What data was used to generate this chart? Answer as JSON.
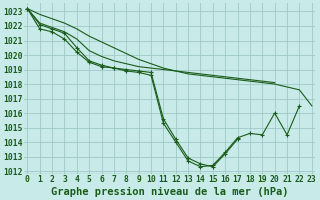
{
  "title": "Graphe pression niveau de la mer (hPa)",
  "bg_color": "#c8eae8",
  "grid_color": "#a0c8c8",
  "line_color": "#1a5c1a",
  "xlim": [
    -0.3,
    23.3
  ],
  "ylim": [
    1011.8,
    1023.6
  ],
  "xticks": [
    0,
    1,
    2,
    3,
    4,
    5,
    6,
    7,
    8,
    9,
    10,
    11,
    12,
    13,
    14,
    15,
    16,
    17,
    18,
    19,
    20,
    21,
    22,
    23
  ],
  "yticks": [
    1012,
    1013,
    1014,
    1015,
    1016,
    1017,
    1018,
    1019,
    1020,
    1021,
    1022,
    1023
  ],
  "series": [
    {
      "x": [
        0,
        1,
        2,
        3,
        4,
        5,
        6,
        7,
        8,
        9,
        10,
        11,
        12,
        13,
        14,
        15,
        16,
        17,
        18,
        19,
        20,
        21,
        22
      ],
      "y": [
        1023.2,
        1021.8,
        1021.6,
        1021.1,
        1020.2,
        1019.5,
        1019.2,
        1019.1,
        1018.9,
        1018.8,
        1018.6,
        1015.3,
        1014.0,
        1012.7,
        1012.3,
        1012.4,
        1013.3,
        1014.3,
        1014.6,
        1014.5,
        1016.0,
        1014.5,
        1016.5
      ],
      "marker": true
    },
    {
      "x": [
        0,
        1,
        2,
        3,
        4,
        5,
        6,
        7,
        8,
        9,
        10,
        11,
        12,
        13,
        14,
        15,
        16,
        17
      ],
      "y": [
        1023.2,
        1022.1,
        1021.8,
        1021.5,
        1020.5,
        1019.6,
        1019.3,
        1019.1,
        1019.0,
        1018.9,
        1018.8,
        1015.6,
        1014.2,
        1012.9,
        1012.5,
        1012.3,
        1013.2,
        1014.2
      ],
      "marker": true
    },
    {
      "x": [
        0,
        1,
        2,
        3,
        4,
        5,
        6,
        7,
        8,
        9,
        10,
        11,
        12,
        13,
        14,
        15,
        16,
        17,
        18,
        19,
        20
      ],
      "y": [
        1023.2,
        1022.2,
        1021.9,
        1021.6,
        1021.1,
        1020.3,
        1019.9,
        1019.6,
        1019.4,
        1019.2,
        1019.1,
        1019.0,
        1018.9,
        1018.8,
        1018.7,
        1018.6,
        1018.5,
        1018.4,
        1018.3,
        1018.2,
        1018.1
      ],
      "marker": false
    },
    {
      "x": [
        0,
        1,
        2,
        3,
        4,
        5,
        6,
        7,
        8,
        9,
        10,
        11,
        12,
        13,
        14,
        15,
        16,
        17,
        18,
        19,
        20,
        21,
        22,
        23
      ],
      "y": [
        1023.2,
        1022.8,
        1022.5,
        1022.2,
        1021.8,
        1021.3,
        1020.9,
        1020.5,
        1020.1,
        1019.7,
        1019.4,
        1019.1,
        1018.9,
        1018.7,
        1018.6,
        1018.5,
        1018.4,
        1018.3,
        1018.2,
        1018.1,
        1018.0,
        1017.8,
        1017.6,
        1016.5
      ],
      "marker": false
    }
  ],
  "title_fontsize": 7.5,
  "tick_fontsize": 5.8
}
